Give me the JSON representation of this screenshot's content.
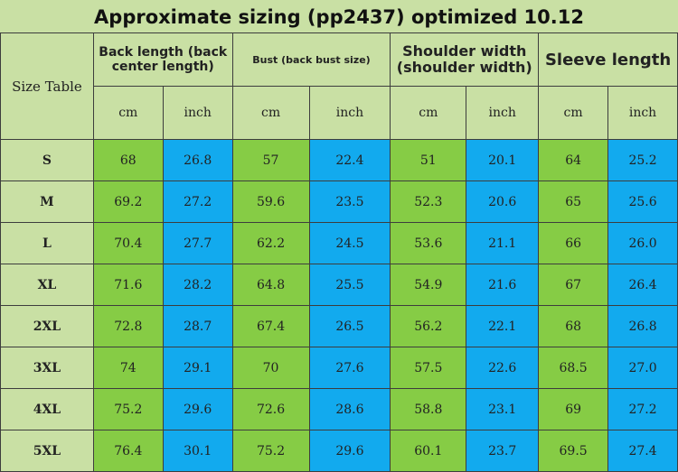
{
  "title": "Approximate sizing (pp2437) optimized 10.12",
  "corner_label": "Size Table",
  "columns": [
    {
      "label": "Back length (back center length)"
    },
    {
      "label": "Bust (back bust size)"
    },
    {
      "label": "Shoulder width (shoulder width)"
    },
    {
      "label": "Sleeve length"
    }
  ],
  "units": [
    "cm",
    "inch",
    "cm",
    "inch",
    "cm",
    "inch",
    "cm",
    "inch"
  ],
  "rows": [
    {
      "size": "S",
      "values": [
        "68",
        "26.8",
        "57",
        "22.4",
        "51",
        "20.1",
        "64",
        "25.2"
      ]
    },
    {
      "size": "M",
      "values": [
        "69.2",
        "27.2",
        "59.6",
        "23.5",
        "52.3",
        "20.6",
        "65",
        "25.6"
      ]
    },
    {
      "size": "L",
      "values": [
        "70.4",
        "27.7",
        "62.2",
        "24.5",
        "53.6",
        "21.1",
        "66",
        "26.0"
      ]
    },
    {
      "size": "XL",
      "values": [
        "71.6",
        "28.2",
        "64.8",
        "25.5",
        "54.9",
        "21.6",
        "67",
        "26.4"
      ]
    },
    {
      "size": "2XL",
      "values": [
        "72.8",
        "28.7",
        "67.4",
        "26.5",
        "56.2",
        "22.1",
        "68",
        "26.8"
      ]
    },
    {
      "size": "3XL",
      "values": [
        "74",
        "29.1",
        "70",
        "27.6",
        "57.5",
        "22.6",
        "68.5",
        "27.0"
      ]
    },
    {
      "size": "4XL",
      "values": [
        "75.2",
        "29.6",
        "72.6",
        "28.6",
        "58.8",
        "23.1",
        "69",
        "27.2"
      ]
    },
    {
      "size": "5XL",
      "values": [
        "76.4",
        "30.1",
        "75.2",
        "29.6",
        "60.1",
        "23.7",
        "69.5",
        "27.4"
      ]
    }
  ],
  "colors": {
    "header_bg": "#c9e0a4",
    "cm_bg": "#86cc45",
    "inch_bg": "#12aaee"
  }
}
